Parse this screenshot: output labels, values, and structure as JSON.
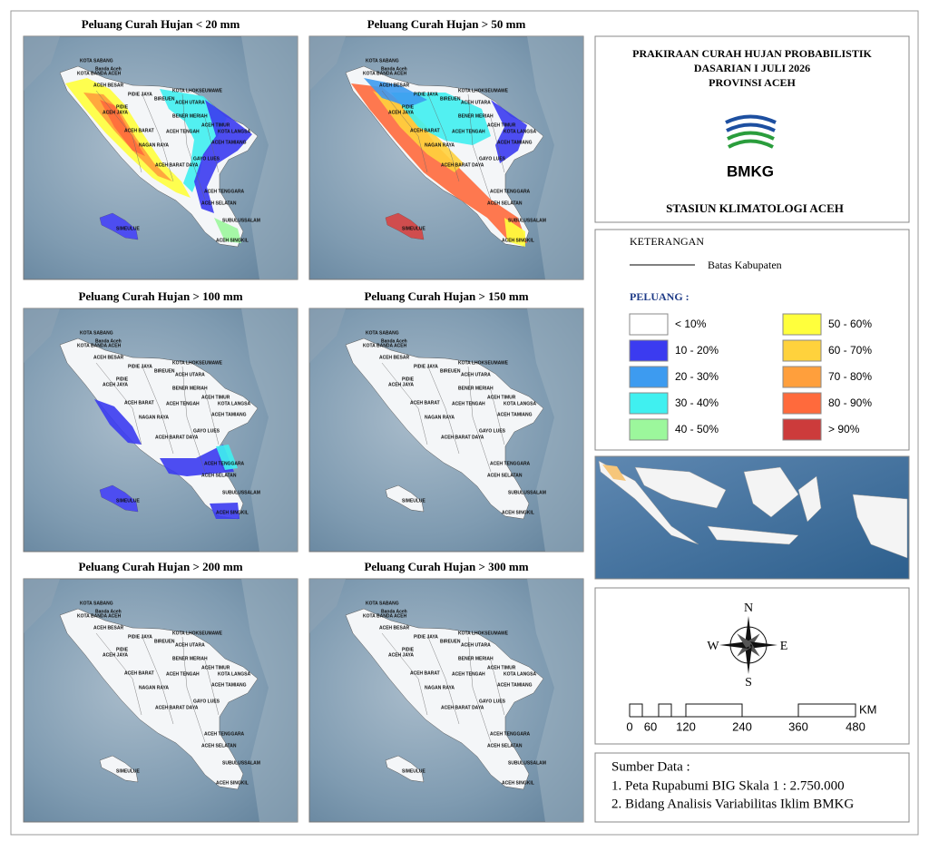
{
  "header": {
    "title_lines": [
      "PRAKIRAAN CURAH HUJAN PROBABILISTIK",
      "DASARIAN I JULI 2026",
      "PROVINSI ACEH"
    ],
    "logo_text": "BMKG",
    "station": "STASIUN KLIMATOLOGI ACEH"
  },
  "panels": [
    {
      "title": "Peluang Curah Hujan < 20 mm"
    },
    {
      "title": "Peluang Curah Hujan > 50 mm"
    },
    {
      "title": "Peluang Curah Hujan > 100 mm"
    },
    {
      "title": "Peluang Curah Hujan > 150 mm"
    },
    {
      "title": "Peluang Curah Hujan > 200 mm"
    },
    {
      "title": "Peluang Curah Hujan > 300 mm"
    }
  ],
  "region_labels": [
    "KOTA SABANG",
    "Banda Aceh",
    "KOTA BANDA ACEH",
    "ACEH BESAR",
    "PIDIE JAYA",
    "BIREUEN",
    "KOTA LHOKSEUMAWE",
    "ACEH UTARA",
    "PIDIE",
    "ACEH JAYA",
    "BENER MERIAH",
    "ACEH TIMUR",
    "KOTA LANGSA",
    "ACEH BARAT",
    "ACEH TENGAH",
    "ACEH TAMIANG",
    "NAGAN RAYA",
    "GAYO LUES",
    "ACEH BARAT DAYA",
    "ACEH TENGGARA",
    "ACEH SELATAN",
    "SUBULUSSALAM",
    "SIMEULUE",
    "ACEH SINGKIL"
  ],
  "legend": {
    "title": "KETERANGAN",
    "boundary": "Batas Kabupaten",
    "subtitle": "PELUANG :",
    "items": [
      {
        "label": "< 10%",
        "color": "#ffffff"
      },
      {
        "label": "10 - 20%",
        "color": "#3b3bf0"
      },
      {
        "label": "20 - 30%",
        "color": "#3d9bf0"
      },
      {
        "label": "30 - 40%",
        "color": "#40f0f0"
      },
      {
        "label": "40 - 50%",
        "color": "#9cf79c"
      },
      {
        "label": "50 - 60%",
        "color": "#ffff3c"
      },
      {
        "label": "60 - 70%",
        "color": "#ffd23c"
      },
      {
        "label": "70 - 80%",
        "color": "#ff9f3c"
      },
      {
        "label": "80 - 90%",
        "color": "#ff6a3c"
      },
      {
        "label": "> 90%",
        "color": "#cc3b3b"
      }
    ]
  },
  "compass": {
    "n": "N",
    "e": "E",
    "s": "S",
    "w": "W"
  },
  "scale_bar": {
    "ticks": [
      "0",
      "60",
      "120",
      "240",
      "360",
      "480"
    ],
    "unit": "KM"
  },
  "source": {
    "title": "Sumber Data :",
    "lines": [
      "1. Peta Rupabumi BIG Skala 1 : 2.750.000",
      "2. Bidang Analisis Variabilitas Iklim BMKG"
    ]
  }
}
